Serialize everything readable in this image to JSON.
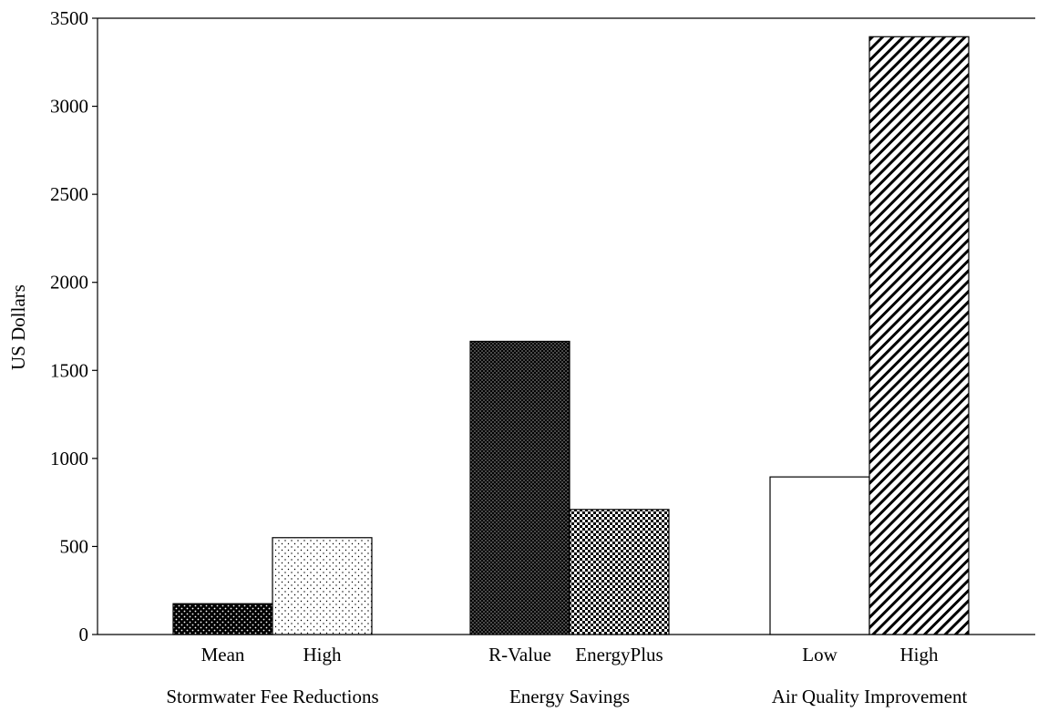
{
  "chart_data": {
    "type": "bar",
    "ylabel": "US Dollars",
    "ylim": [
      0,
      3500
    ],
    "yticks": [
      0,
      500,
      1000,
      1500,
      2000,
      2500,
      3000,
      3500
    ],
    "grid": false,
    "legend": "none",
    "groups": [
      {
        "label": "Stormwater Fee Reductions",
        "bars": [
          {
            "label": "Mean",
            "value": 175,
            "pattern": "dense-dots"
          },
          {
            "label": "High",
            "value": 550,
            "pattern": "sparse-dots"
          }
        ]
      },
      {
        "label": "Energy Savings",
        "bars": [
          {
            "label": "R-Value",
            "value": 1665,
            "pattern": "fine-dots-dark"
          },
          {
            "label": "EnergyPlus",
            "value": 710,
            "pattern": "checker"
          }
        ]
      },
      {
        "label": "Air Quality Improvement",
        "bars": [
          {
            "label": "Low",
            "value": 895,
            "pattern": "blank"
          },
          {
            "label": "High",
            "value": 3395,
            "pattern": "diagonal-hatch"
          }
        ]
      }
    ],
    "colors": {
      "ink": "#000000",
      "background": "#ffffff"
    }
  }
}
